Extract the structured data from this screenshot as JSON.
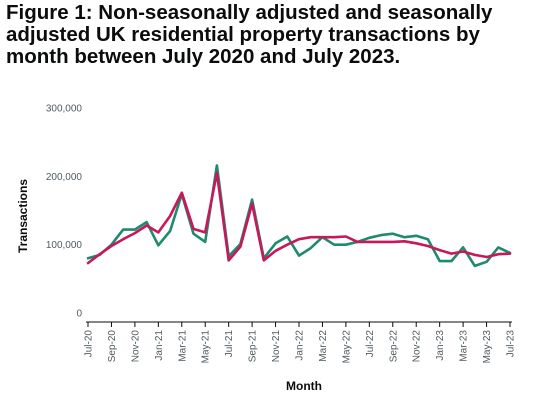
{
  "chart_data": {
    "type": "line",
    "title": "Figure 1: Non-seasonally adjusted and seasonally adjusted UK residential property transactions by month between July 2020 and July 2023.",
    "xlabel": "Month",
    "ylabel": "Transactions",
    "ylim": [
      0,
      300000
    ],
    "yticks": [
      0,
      100000,
      200000,
      300000
    ],
    "ytick_labels": [
      "0",
      "100,000",
      "200,000",
      "300,000"
    ],
    "x": [
      "Jul-20",
      "Aug-20",
      "Sep-20",
      "Oct-20",
      "Nov-20",
      "Dec-20",
      "Jan-21",
      "Feb-21",
      "Mar-21",
      "Apr-21",
      "May-21",
      "Jun-21",
      "Jul-21",
      "Aug-21",
      "Sep-21",
      "Oct-21",
      "Nov-21",
      "Dec-21",
      "Jan-22",
      "Feb-22",
      "Mar-22",
      "Apr-22",
      "May-22",
      "Jun-22",
      "Jul-22",
      "Aug-22",
      "Sep-22",
      "Oct-22",
      "Nov-22",
      "Dec-22",
      "Jan-23",
      "Feb-23",
      "Mar-23",
      "Apr-23",
      "May-23",
      "Jun-23",
      "Jul-23"
    ],
    "xtick_labels": [
      "Jul-20",
      "Sep-20",
      "Nov-20",
      "Jan-21",
      "Mar-21",
      "May-21",
      "Jul-21",
      "Sep-21",
      "Nov-21",
      "Jan-22",
      "Mar-22",
      "May-22",
      "Jul-22",
      "Sep-22",
      "Nov-22",
      "Jan-23",
      "Mar-23",
      "May-23",
      "Jul-23"
    ],
    "grid": false,
    "series": [
      {
        "color": "#1e8a6e",
        "values": [
          80000,
          85000,
          100000,
          122000,
          122000,
          133000,
          99000,
          120000,
          174000,
          116000,
          104000,
          216000,
          83000,
          101000,
          166000,
          80000,
          102000,
          112000,
          84000,
          95000,
          111000,
          100000,
          100000,
          104000,
          110000,
          114000,
          116000,
          111000,
          113000,
          108000,
          76000,
          76000,
          96000,
          69000,
          75000,
          96000,
          88000
        ]
      },
      {
        "color": "#c8175a",
        "values": [
          73000,
          86000,
          98000,
          108000,
          117000,
          128000,
          118000,
          142000,
          176000,
          123000,
          118000,
          205000,
          77000,
          97000,
          160000,
          77000,
          91000,
          100000,
          108000,
          111000,
          111000,
          111000,
          112000,
          104000,
          104000,
          104000,
          104000,
          105000,
          102000,
          98000,
          92000,
          87000,
          90000,
          85000,
          82000,
          86000,
          87000
        ]
      }
    ]
  }
}
